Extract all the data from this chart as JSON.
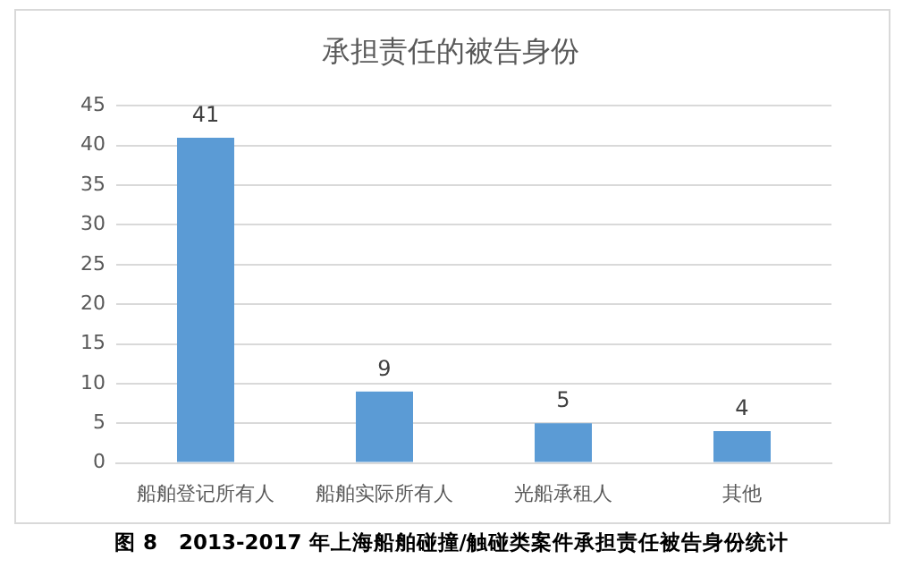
{
  "chart_data": {
    "type": "bar",
    "title": "承担责任的被告身份",
    "categories": [
      "船舶登记所有人",
      "船舶实际所有人",
      "光船承租人",
      "其他"
    ],
    "values": [
      41,
      9,
      5,
      4
    ],
    "color": "#5b9bd5",
    "ylim": [
      0,
      45
    ],
    "yticks": [
      0,
      5,
      10,
      15,
      20,
      25,
      30,
      35,
      40,
      45
    ],
    "grid": "y",
    "data_labels": true,
    "legend": false,
    "annotations": [
      "图 8　2013-2017 年上海船舶碰撞/触碰类案件承担责任被告身份统计"
    ]
  }
}
